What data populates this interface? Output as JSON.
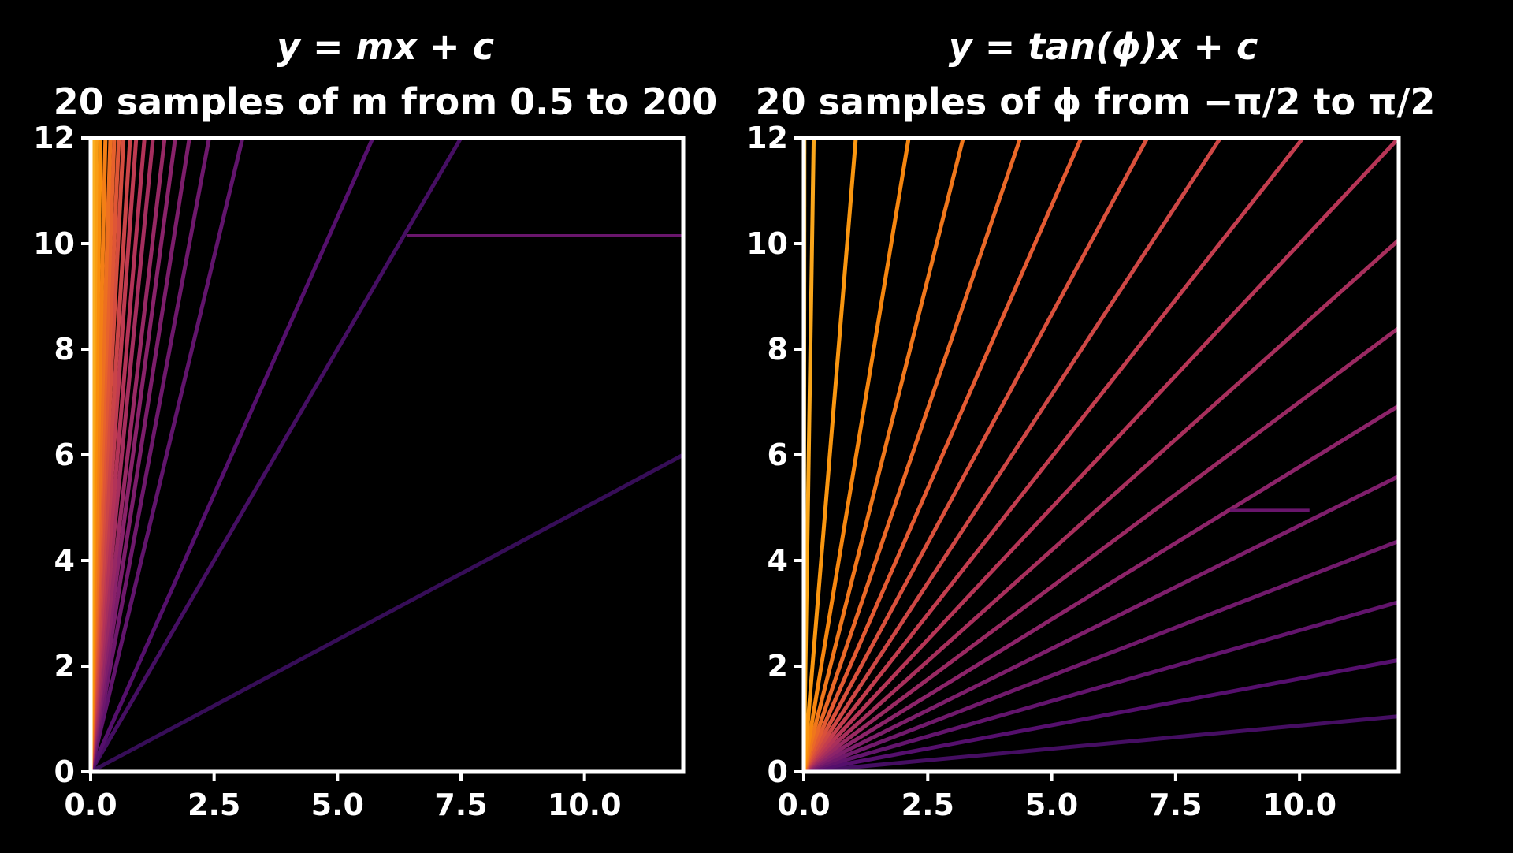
{
  "chart_data": [
    {
      "type": "line",
      "title_line1": "y = mx + c",
      "title_line2": "20 samples of m from 0.5 to 200",
      "xlabel": "",
      "ylabel": "",
      "xlim": [
        0,
        12
      ],
      "ylim": [
        0,
        12
      ],
      "xticks": [
        0.0,
        2.5,
        5.0,
        7.5,
        10.0
      ],
      "xtick_labels": [
        "0.0",
        "2.5",
        "5.0",
        "7.5",
        "10.0"
      ],
      "yticks": [
        0,
        2,
        4,
        6,
        8,
        10,
        12
      ],
      "ytick_labels": [
        "0",
        "2",
        "4",
        "6",
        "8",
        "10",
        "12"
      ],
      "grid": false,
      "colormap": "inferno",
      "series": [
        {
          "slope": 0.5,
          "intercept": 0
        },
        {
          "slope": 1.6,
          "intercept": 0
        },
        {
          "slope": 2.1,
          "intercept": 0
        },
        {
          "slope": 3.9,
          "intercept": 0
        },
        {
          "slope": 5.0,
          "intercept": 0
        },
        {
          "slope": 6.0,
          "intercept": 0
        },
        {
          "slope": 7.0,
          "intercept": 0
        },
        {
          "slope": 8.0,
          "intercept": 0
        },
        {
          "slope": 9.5,
          "intercept": 0
        },
        {
          "slope": 11.0,
          "intercept": 0
        },
        {
          "slope": 13.0,
          "intercept": 0
        },
        {
          "slope": 15.0,
          "intercept": 0
        },
        {
          "slope": 18.0,
          "intercept": 0
        },
        {
          "slope": 21.0,
          "intercept": 0
        },
        {
          "slope": 25.0,
          "intercept": 0
        },
        {
          "slope": 30.0,
          "intercept": 0
        },
        {
          "slope": 40.0,
          "intercept": 0
        },
        {
          "slope": 60.0,
          "intercept": 0
        },
        {
          "slope": 100.0,
          "intercept": 0
        },
        {
          "slope": 200.0,
          "intercept": 0
        }
      ],
      "annotation": {
        "x0": 6.4,
        "x1": 12.0,
        "y": 10.15
      }
    },
    {
      "type": "line",
      "title_line1": "y = tan(ϕ)x + c",
      "title_line2": "20 samples of ϕ from −π/2 to π/2",
      "xlabel": "",
      "ylabel": "",
      "xlim": [
        0,
        12
      ],
      "ylim": [
        0,
        12
      ],
      "xticks": [
        0.0,
        2.5,
        5.0,
        7.5,
        10.0
      ],
      "xtick_labels": [
        "0.0",
        "2.5",
        "5.0",
        "7.5",
        "10.0"
      ],
      "yticks": [
        0,
        2,
        4,
        6,
        8,
        10,
        12
      ],
      "ytick_labels": [
        "0",
        "2",
        "4",
        "6",
        "8",
        "10",
        "12"
      ],
      "grid": false,
      "colormap": "inferno",
      "series": [
        {
          "slope": 0.0,
          "intercept": 0
        },
        {
          "slope": 0.0875,
          "intercept": 0
        },
        {
          "slope": 0.1763,
          "intercept": 0
        },
        {
          "slope": 0.2679,
          "intercept": 0
        },
        {
          "slope": 0.364,
          "intercept": 0
        },
        {
          "slope": 0.4663,
          "intercept": 0
        },
        {
          "slope": 0.5774,
          "intercept": 0
        },
        {
          "slope": 0.7002,
          "intercept": 0
        },
        {
          "slope": 0.8391,
          "intercept": 0
        },
        {
          "slope": 1.0,
          "intercept": 0
        },
        {
          "slope": 1.1918,
          "intercept": 0
        },
        {
          "slope": 1.4281,
          "intercept": 0
        },
        {
          "slope": 1.7321,
          "intercept": 0
        },
        {
          "slope": 2.1445,
          "intercept": 0
        },
        {
          "slope": 2.7475,
          "intercept": 0
        },
        {
          "slope": 3.7321,
          "intercept": 0
        },
        {
          "slope": 5.6713,
          "intercept": 0
        },
        {
          "slope": 11.4301,
          "intercept": 0
        },
        {
          "slope": 60.0,
          "intercept": 0
        },
        {
          "slope": 1000.0,
          "intercept": 0
        }
      ],
      "annotation": {
        "x0": 8.6,
        "x1": 10.2,
        "y": 4.95
      }
    }
  ]
}
